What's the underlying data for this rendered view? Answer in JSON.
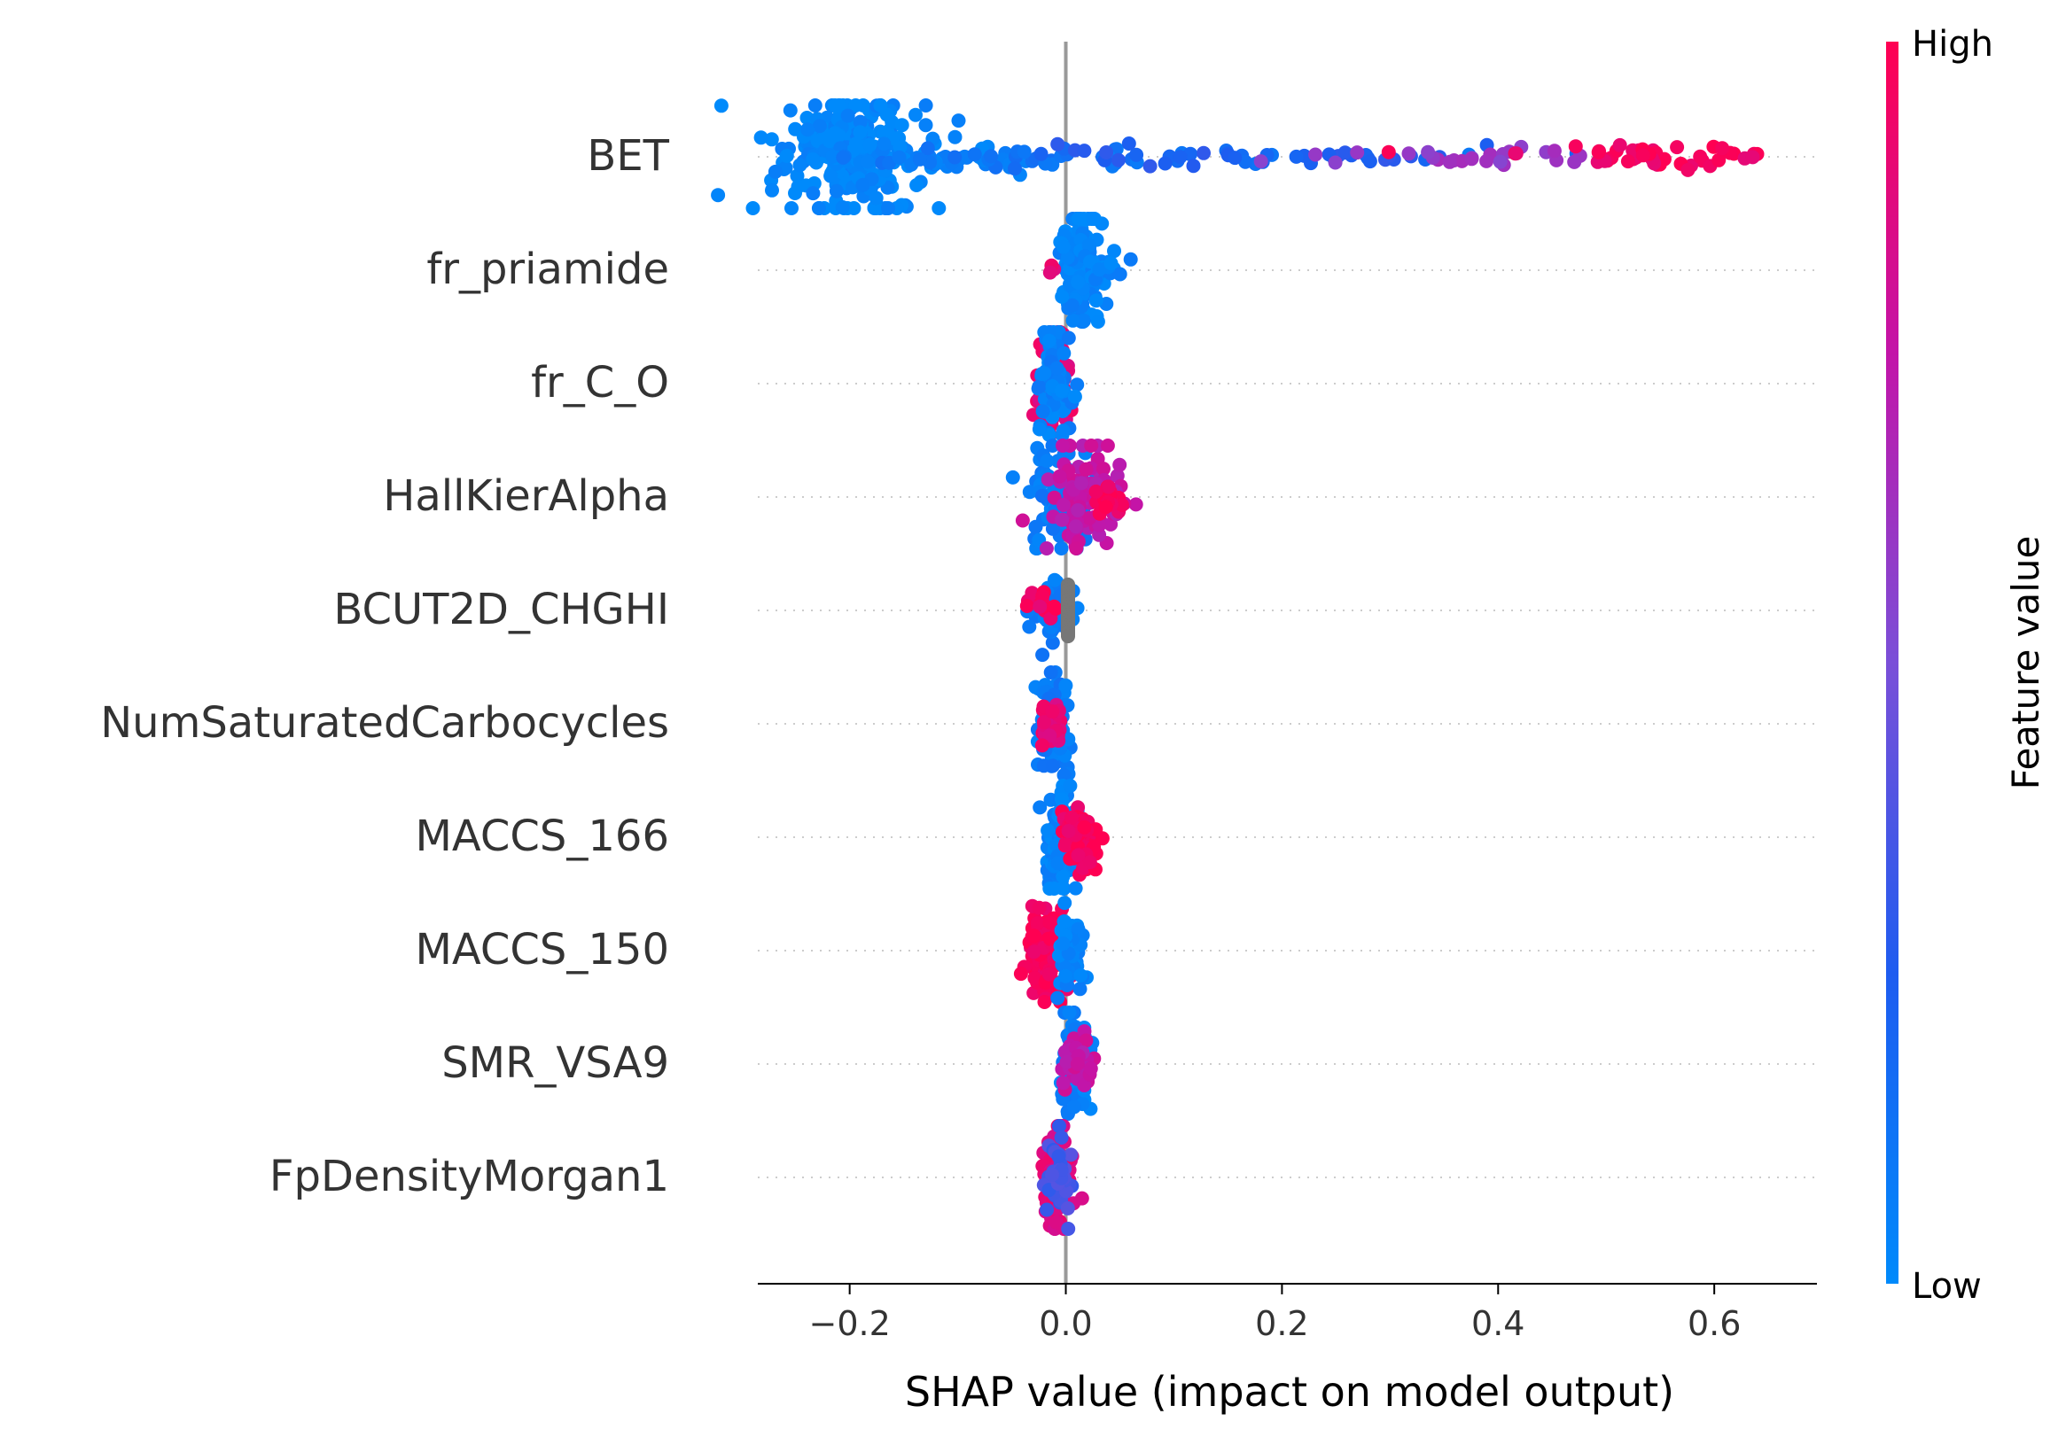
{
  "chart_data": {
    "type": "scatter",
    "subtype": "beeswarm",
    "title": "",
    "xlabel": "SHAP value (impact on model output)",
    "ylabel": "",
    "xlim": [
      -0.285,
      0.695
    ],
    "xticks": [
      -0.2,
      0.0,
      0.2,
      0.4,
      0.6
    ],
    "xtick_labels": [
      "−0.2",
      "0.0",
      "0.2",
      "0.4",
      "0.6"
    ],
    "zero_line": 0.0,
    "grid": "dotted horizontal per feature",
    "legend": "colorbar right",
    "colorbar": {
      "label": "Feature value",
      "high_label": "High",
      "low_label": "Low",
      "colors": [
        "#008afb",
        "#1e5cf0",
        "#7a4fd8",
        "#c314a8",
        "#ff0052"
      ]
    },
    "features": [
      {
        "name": "BET",
        "clusters": [
          {
            "center": -0.2,
            "spread": 0.035,
            "count": 230,
            "value": 0.02,
            "vspread": 0.09
          },
          {
            "center": -0.13,
            "spread": 0.04,
            "count": 35,
            "value": 0.04,
            "vspread": 0.03
          },
          {
            "center": -0.02,
            "spread": 0.12,
            "count": 45,
            "value": 0.12,
            "vspread": 0.015
          },
          {
            "center": 0.14,
            "spread": 0.14,
            "count": 40,
            "value": 0.25,
            "vspread": 0.012
          },
          {
            "center": 0.38,
            "spread": 0.07,
            "count": 25,
            "value": 0.6,
            "vspread": 0.012
          },
          {
            "center": 0.54,
            "spread": 0.06,
            "count": 45,
            "value": 0.95,
            "vspread": 0.015
          }
        ]
      },
      {
        "name": "fr_priamide",
        "clusters": [
          {
            "center": 0.012,
            "spread": 0.01,
            "count": 150,
            "value": 0.02,
            "vspread": 0.08
          },
          {
            "center": 0.035,
            "spread": 0.012,
            "count": 18,
            "value": 0.03,
            "vspread": 0.02
          },
          {
            "center": -0.01,
            "spread": 0.004,
            "count": 3,
            "value": 0.9,
            "vspread": 0.01
          }
        ]
      },
      {
        "name": "fr_C_O",
        "clusters": [
          {
            "center": -0.012,
            "spread": 0.008,
            "count": 90,
            "value": 0.9,
            "vspread": 0.07
          },
          {
            "center": -0.01,
            "spread": 0.009,
            "count": 70,
            "value": 0.05,
            "vspread": 0.07
          }
        ]
      },
      {
        "name": "HallKierAlpha",
        "clusters": [
          {
            "center": -0.005,
            "spread": 0.014,
            "count": 90,
            "value": 0.08,
            "vspread": 0.07
          },
          {
            "center": 0.02,
            "spread": 0.018,
            "count": 100,
            "value": 0.75,
            "vspread": 0.07
          },
          {
            "center": 0.04,
            "spread": 0.008,
            "count": 20,
            "value": 0.97,
            "vspread": 0.02
          }
        ]
      },
      {
        "name": "BCUT2D_CHGHI",
        "clusters": [
          {
            "center": -0.01,
            "spread": 0.01,
            "count": 50,
            "value": 0.08,
            "vspread": 0.05
          },
          {
            "center": -0.02,
            "spread": 0.006,
            "count": 15,
            "value": 0.95,
            "vspread": 0.02
          }
        ],
        "grey_points": {
          "x": 0.002,
          "count": 35,
          "vspread": 0.07
        }
      },
      {
        "name": "NumSaturatedCarbocycles",
        "clusters": [
          {
            "center": -0.011,
            "spread": 0.007,
            "count": 80,
            "value": 0.08,
            "vspread": 0.07
          },
          {
            "center": -0.014,
            "spread": 0.006,
            "count": 25,
            "value": 0.9,
            "vspread": 0.03
          }
        ]
      },
      {
        "name": "MACCS_166",
        "clusters": [
          {
            "center": -0.006,
            "spread": 0.006,
            "count": 90,
            "value": 0.03,
            "vspread": 0.07
          },
          {
            "center": 0.012,
            "spread": 0.007,
            "count": 90,
            "value": 0.97,
            "vspread": 0.05
          }
        ]
      },
      {
        "name": "MACCS_150",
        "clusters": [
          {
            "center": -0.015,
            "spread": 0.01,
            "count": 110,
            "value": 0.97,
            "vspread": 0.06
          },
          {
            "center": 0.005,
            "spread": 0.006,
            "count": 60,
            "value": 0.03,
            "vspread": 0.06
          }
        ]
      },
      {
        "name": "SMR_VSA9",
        "clusters": [
          {
            "center": 0.008,
            "spread": 0.006,
            "count": 100,
            "value": 0.05,
            "vspread": 0.07
          },
          {
            "center": 0.01,
            "spread": 0.007,
            "count": 40,
            "value": 0.75,
            "vspread": 0.04
          }
        ]
      },
      {
        "name": "FpDensityMorgan1",
        "clusters": [
          {
            "center": -0.008,
            "spread": 0.006,
            "count": 100,
            "value": 0.88,
            "vspread": 0.07
          },
          {
            "center": -0.005,
            "spread": 0.006,
            "count": 40,
            "value": 0.35,
            "vspread": 0.05
          }
        ]
      }
    ]
  }
}
